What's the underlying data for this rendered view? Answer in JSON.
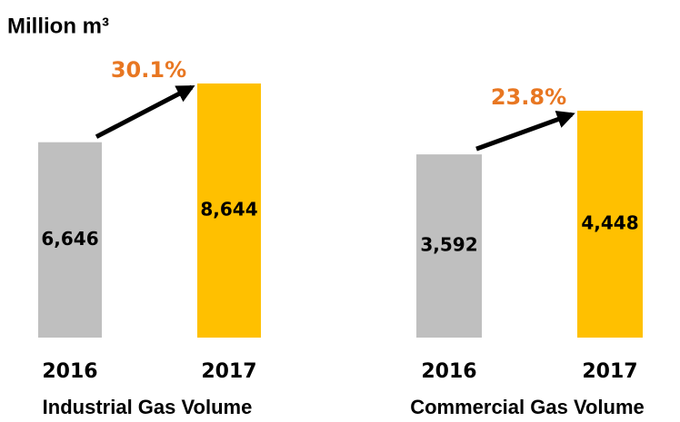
{
  "unit": "Million m³",
  "chart_data": [
    {
      "type": "bar",
      "title": "Industrial Gas Volume",
      "categories": [
        "2016",
        "2017"
      ],
      "values": [
        6646,
        8644
      ],
      "value_labels": [
        "6,646",
        "8,644"
      ],
      "colors": [
        "#bfbfbf",
        "#ffc000"
      ],
      "annotation": "30.1%",
      "annotation_color": "#e87722"
    },
    {
      "type": "bar",
      "title": "Commercial Gas Volume",
      "categories": [
        "2016",
        "2017"
      ],
      "values": [
        3592,
        4448
      ],
      "value_labels": [
        "3,592",
        "4,448"
      ],
      "colors": [
        "#bfbfbf",
        "#ffc000"
      ],
      "annotation": "23.8%",
      "annotation_color": "#e87722"
    }
  ]
}
